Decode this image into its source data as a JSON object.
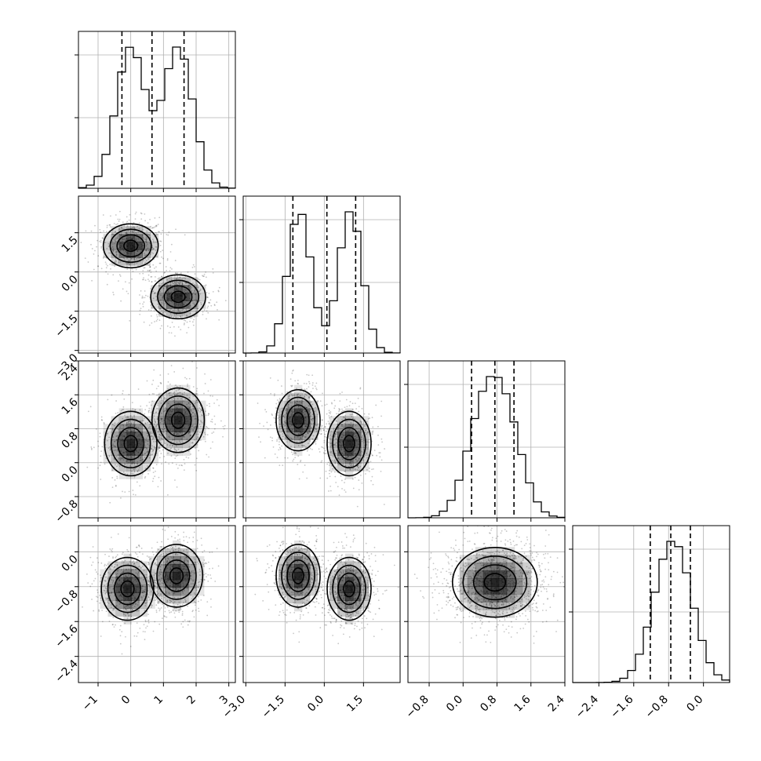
{
  "figure": {
    "kind": "corner-plot"
  },
  "chart_data": {
    "type": "corner",
    "parameters": 4,
    "grid": true,
    "colors": {
      "contour": "#000000",
      "points": "#000000",
      "density": "#000000",
      "grid": "#b0b0b0"
    },
    "quantiles": [
      0.16,
      0.5,
      0.84
    ],
    "params": [
      {
        "range": [
          -1.6,
          3.2
        ],
        "ticks": [
          -1,
          0,
          1,
          2,
          3
        ],
        "tick_labels": [
          "−1",
          "0",
          "1",
          "2",
          "3"
        ],
        "quantile_values": [
          -0.27,
          0.65,
          1.63
        ],
        "modes": [
          {
            "mean": 0.0,
            "sd": 0.45,
            "w": 0.5
          },
          {
            "mean": 1.45,
            "sd": 0.45,
            "w": 0.5
          }
        ]
      },
      {
        "range": [
          -3.1,
          2.9
        ],
        "ticks": [
          -3.0,
          -1.5,
          0.0,
          1.5
        ],
        "tick_labels": [
          "−3.0",
          "−1.5",
          "0.0",
          "1.5"
        ],
        "quantile_values": [
          -1.2,
          0.1,
          1.2
        ],
        "modes": [
          {
            "mean": 1.0,
            "sd": 0.45,
            "w": 0.5
          },
          {
            "mean": -0.95,
            "sd": 0.45,
            "w": 0.5
          }
        ]
      },
      {
        "range": [
          -1.3,
          2.4
        ],
        "ticks": [
          -0.8,
          0.0,
          0.8,
          1.6,
          2.4
        ],
        "tick_labels": [
          "−0.8",
          "0.0",
          "0.8",
          "1.6",
          "2.4"
        ],
        "quantile_values": [
          0.2,
          0.75,
          1.2
        ],
        "modes": [
          {
            "mean": 0.45,
            "sd": 0.4,
            "w": 0.5
          },
          {
            "mean": 1.0,
            "sd": 0.4,
            "w": 0.5
          }
        ]
      },
      {
        "range": [
          -3.0,
          0.6
        ],
        "ticks": [
          -2.4,
          -1.6,
          -0.8,
          0.0
        ],
        "tick_labels": [
          "−2.4",
          "−1.6",
          "−0.8",
          "0.0"
        ],
        "quantile_values": [
          -1.22,
          -0.75,
          -0.3
        ],
        "modes": [
          {
            "mean": -0.85,
            "sd": 0.4,
            "w": 0.5
          },
          {
            "mean": -0.55,
            "sd": 0.4,
            "w": 0.5
          }
        ]
      }
    ],
    "pairs": [
      {
        "x": 0,
        "y": 1,
        "clusters": [
          {
            "mx": 0.0,
            "my": 1.0,
            "sx": 0.42,
            "sy": 0.42
          },
          {
            "mx": 1.45,
            "my": -0.95,
            "sx": 0.42,
            "sy": 0.42
          }
        ]
      },
      {
        "x": 0,
        "y": 2,
        "clusters": [
          {
            "mx": 0.0,
            "my": 0.45,
            "sx": 0.4,
            "sy": 0.38
          },
          {
            "mx": 1.45,
            "my": 1.0,
            "sx": 0.4,
            "sy": 0.38
          }
        ]
      },
      {
        "x": 1,
        "y": 2,
        "clusters": [
          {
            "mx": -1.0,
            "my": 1.0,
            "sx": 0.42,
            "sy": 0.36
          },
          {
            "mx": 0.95,
            "my": 0.45,
            "sx": 0.42,
            "sy": 0.38
          }
        ]
      },
      {
        "x": 0,
        "y": 3,
        "clusters": [
          {
            "mx": -0.1,
            "my": -0.85,
            "sx": 0.4,
            "sy": 0.36
          },
          {
            "mx": 1.4,
            "my": -0.55,
            "sx": 0.4,
            "sy": 0.36
          }
        ]
      },
      {
        "x": 1,
        "y": 3,
        "clusters": [
          {
            "mx": -1.0,
            "my": -0.55,
            "sx": 0.42,
            "sy": 0.36
          },
          {
            "mx": 0.95,
            "my": -0.85,
            "sx": 0.42,
            "sy": 0.36
          }
        ]
      },
      {
        "x": 2,
        "y": 3,
        "clusters": [
          {
            "mx": 0.75,
            "my": -0.7,
            "sx": 0.5,
            "sy": 0.4
          }
        ]
      }
    ]
  }
}
